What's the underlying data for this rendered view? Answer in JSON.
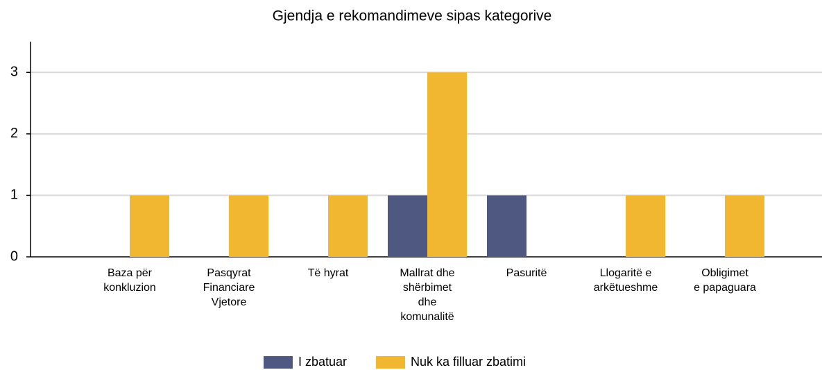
{
  "chart_data": {
    "type": "bar",
    "title": "Gjendja e rekomandimeve sipas kategorive",
    "categories": [
      [
        "Baza për",
        "konkluzion"
      ],
      [
        "Pasqyrat",
        "Financiare",
        "Vjetore"
      ],
      [
        "Të hyrat"
      ],
      [
        "Mallrat dhe",
        "shërbimet",
        "dhe",
        "komunalitë"
      ],
      [
        "Pasuritë"
      ],
      [
        "Llogaritë e",
        "arkëtueshme"
      ],
      [
        "Obligimet",
        "e papaguara"
      ]
    ],
    "series": [
      {
        "name": "I zbatuar",
        "color": "#4e5880",
        "values": [
          0,
          0,
          0,
          1,
          1,
          0,
          0
        ]
      },
      {
        "name": "Nuk ka filluar zbatimi",
        "color": "#f2b731",
        "values": [
          1,
          1,
          1,
          3,
          0,
          1,
          1
        ]
      }
    ],
    "ylim": [
      0,
      3.5
    ],
    "yticks": [
      0,
      1,
      2,
      3
    ],
    "grid": true
  }
}
